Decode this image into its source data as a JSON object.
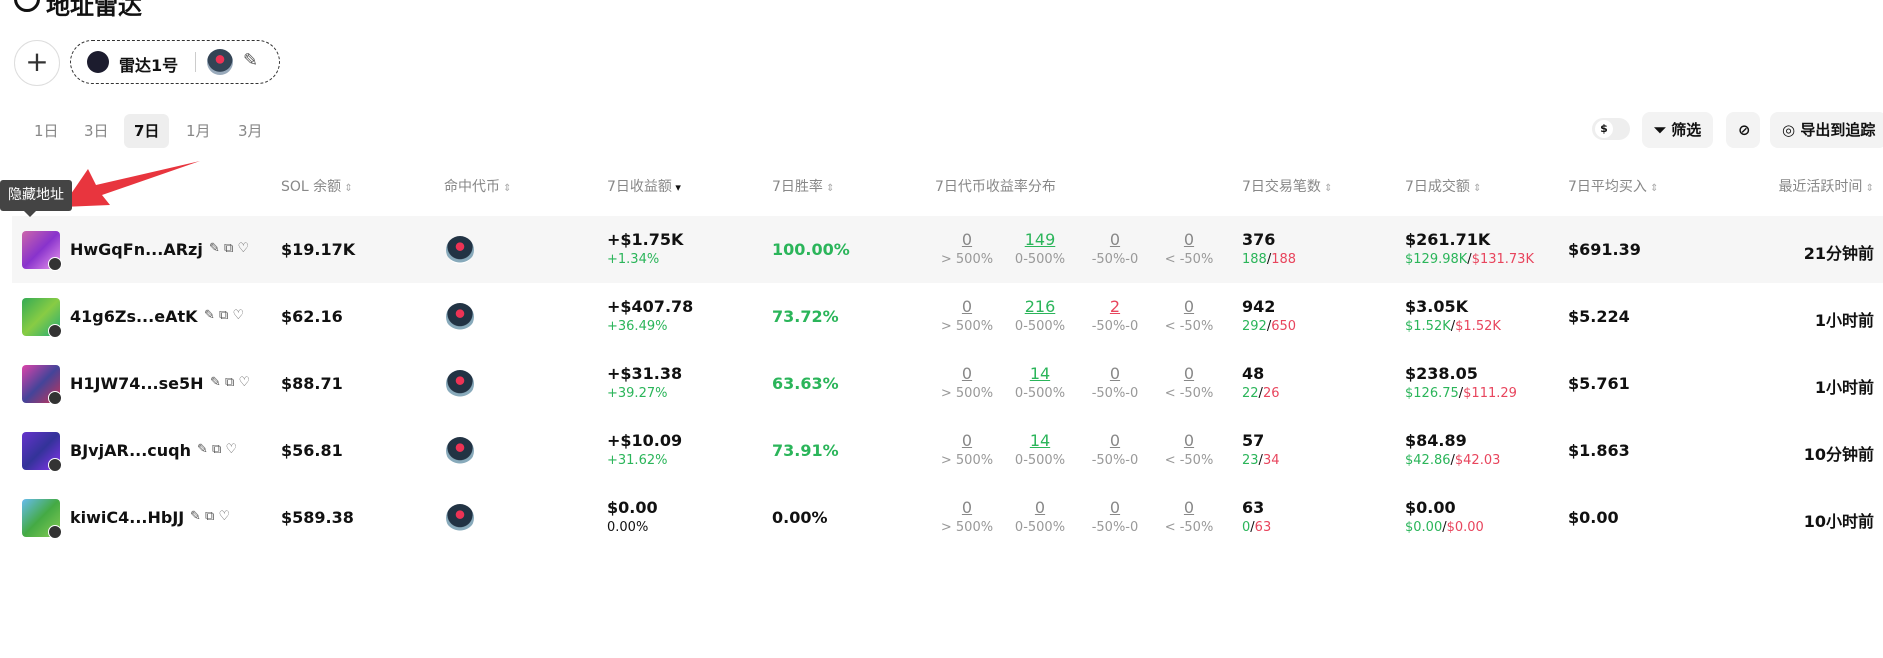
{
  "header": {
    "title": "地址雷达"
  },
  "group": {
    "name": "雷达1号"
  },
  "tabs": [
    "1日",
    "3日",
    "7日",
    "1月",
    "3月"
  ],
  "active_tab": 2,
  "toolbar": {
    "currency": "$",
    "filter": "筛选",
    "export": "导出到追踪"
  },
  "tooltip": "隐藏地址",
  "columns": {
    "sol": "SOL 余额",
    "tokens": "命中代币",
    "pnl": "7日收益额",
    "winrate": "7日胜率",
    "distribution": "7日代币收益率分布",
    "trades": "7日交易笔数",
    "volume": "7日成交额",
    "avg_buy": "7日平均买入",
    "last_active": "最近活跃时间"
  },
  "distribution_labels": [
    "> 500%",
    "0-500%",
    "-50%-0",
    "< -50%"
  ],
  "rows": [
    {
      "address": "HwGqFn...ARzj",
      "sol": "$19.17K",
      "pnl": "+$1.75K",
      "pnl_pct": "+1.34%",
      "winrate": "100.00%",
      "dist": [
        "0",
        "149",
        "0",
        "0"
      ],
      "trades": "376",
      "buys": "188",
      "sells": "188",
      "volume": "$261.71K",
      "buy_vol": "$129.98K",
      "sell_vol": "$131.73K",
      "avg_buy": "$691.39",
      "last_active": "21分钟前"
    },
    {
      "address": "41g6Zs...eAtK",
      "sol": "$62.16",
      "pnl": "+$407.78",
      "pnl_pct": "+36.49%",
      "winrate": "73.72%",
      "dist": [
        "0",
        "216",
        "2",
        "0"
      ],
      "trades": "942",
      "buys": "292",
      "sells": "650",
      "volume": "$3.05K",
      "buy_vol": "$1.52K",
      "sell_vol": "$1.52K",
      "avg_buy": "$5.224",
      "last_active": "1小时前"
    },
    {
      "address": "H1JW74...se5H",
      "sol": "$88.71",
      "pnl": "+$31.38",
      "pnl_pct": "+39.27%",
      "winrate": "63.63%",
      "dist": [
        "0",
        "14",
        "0",
        "0"
      ],
      "trades": "48",
      "buys": "22",
      "sells": "26",
      "volume": "$238.05",
      "buy_vol": "$126.75",
      "sell_vol": "$111.29",
      "avg_buy": "$5.761",
      "last_active": "1小时前"
    },
    {
      "address": "BJvjAR...cuqh",
      "sol": "$56.81",
      "pnl": "+$10.09",
      "pnl_pct": "+31.62%",
      "winrate": "73.91%",
      "dist": [
        "0",
        "14",
        "0",
        "0"
      ],
      "trades": "57",
      "buys": "23",
      "sells": "34",
      "volume": "$84.89",
      "buy_vol": "$42.86",
      "sell_vol": "$42.03",
      "avg_buy": "$1.863",
      "last_active": "10分钟前"
    },
    {
      "address": "kiwiC4...HbJJ",
      "sol": "$589.38",
      "pnl": "$0.00",
      "pnl_pct": "0.00%",
      "winrate": "0.00%",
      "dist": [
        "0",
        "0",
        "0",
        "0"
      ],
      "trades": "63",
      "buys": "0",
      "sells": "63",
      "volume": "$0.00",
      "buy_vol": "$0.00",
      "sell_vol": "$0.00",
      "avg_buy": "$0.00",
      "last_active": "10小时前"
    }
  ]
}
